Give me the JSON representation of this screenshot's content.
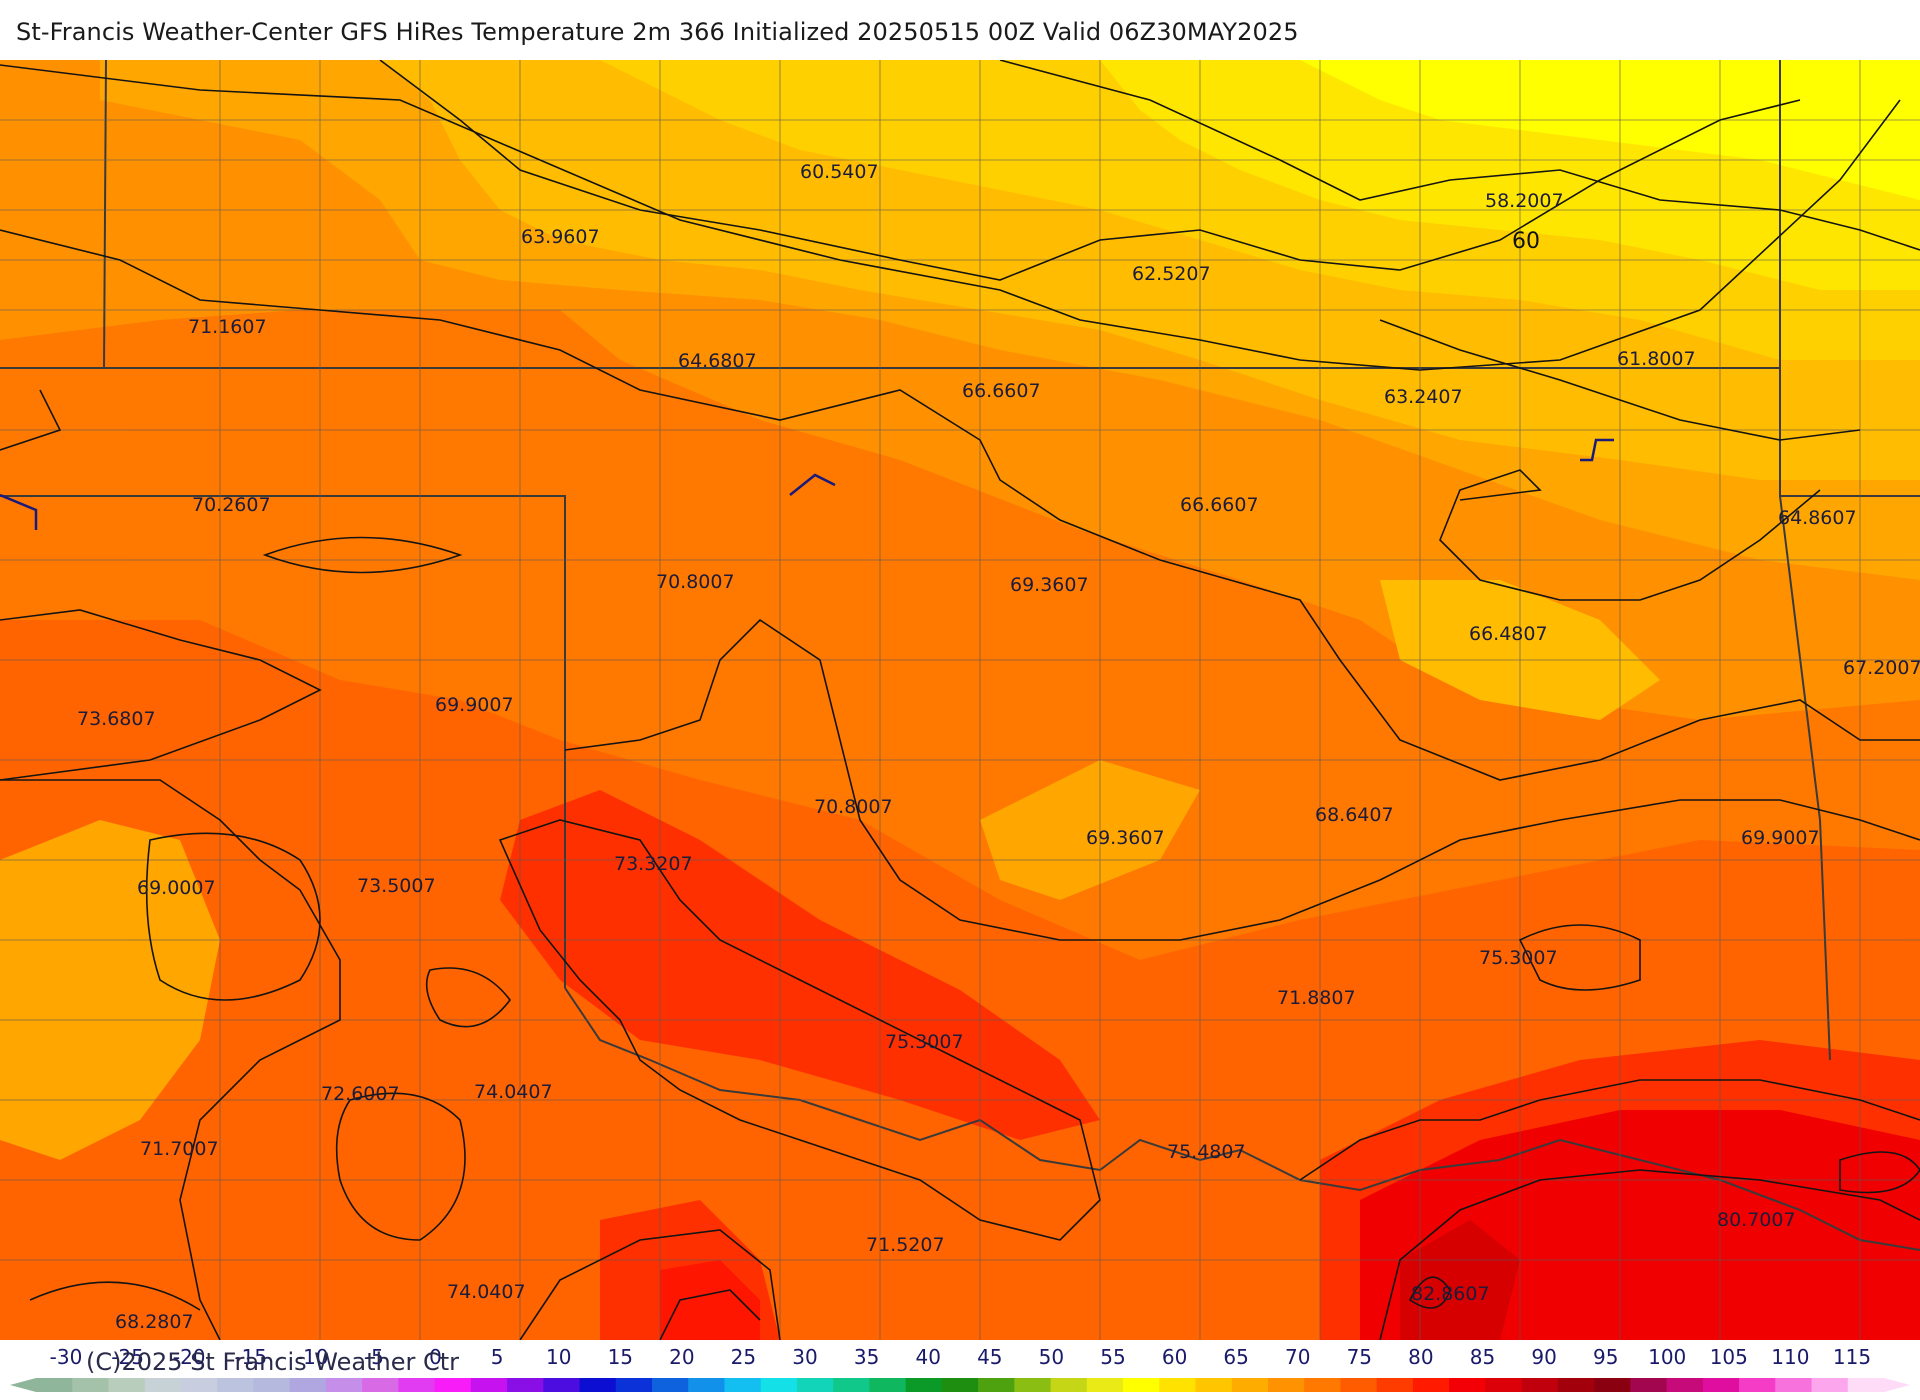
{
  "title": "St-Francis Weather-Center GFS HiRes Temperature 2m  366 Initialized 20250515 00Z Valid 06Z30MAY2025",
  "contour_special_label": "60",
  "value_labels": [
    {
      "text": "60.5407"
    },
    {
      "text": "58.2007"
    },
    {
      "text": "63.9607"
    },
    {
      "text": "62.5207"
    },
    {
      "text": "71.1607"
    },
    {
      "text": "64.6807"
    },
    {
      "text": "66.6607"
    },
    {
      "text": "63.2407"
    },
    {
      "text": "61.8007"
    },
    {
      "text": "70.2607"
    },
    {
      "text": "66.6607"
    },
    {
      "text": "64.8607"
    },
    {
      "text": "70.8007"
    },
    {
      "text": "69.3607"
    },
    {
      "text": "66.4807"
    },
    {
      "text": "67.2007"
    },
    {
      "text": "73.6807"
    },
    {
      "text": "69.9007"
    },
    {
      "text": "70.8007"
    },
    {
      "text": "69.3607"
    },
    {
      "text": "68.6407"
    },
    {
      "text": "69.9007"
    },
    {
      "text": "69.0007"
    },
    {
      "text": "73.5007"
    },
    {
      "text": "73.3207"
    },
    {
      "text": "75.3007"
    },
    {
      "text": "71.8807"
    },
    {
      "text": "75.3007"
    },
    {
      "text": "72.6007"
    },
    {
      "text": "74.0407"
    },
    {
      "text": "71.7007"
    },
    {
      "text": "75.4807"
    },
    {
      "text": "80.7007"
    },
    {
      "text": "71.5207"
    },
    {
      "text": "74.0407"
    },
    {
      "text": "68.2807"
    },
    {
      "text": "82.8607"
    }
  ],
  "colorbar": {
    "tick_labels": [
      "-30",
      "-25",
      "-20",
      "-15",
      "-10",
      "-5",
      "0",
      "5",
      "10",
      "15",
      "20",
      "25",
      "30",
      "35",
      "40",
      "45",
      "50",
      "55",
      "60",
      "65",
      "70",
      "75",
      "80",
      "85",
      "90",
      "95",
      "100",
      "105",
      "110",
      "115"
    ],
    "colors": [
      "#8fb59a",
      "#a4c2aa",
      "#b8cdbb",
      "#c6d2d6",
      "#c9cde0",
      "#bcc3df",
      "#b4b9dd",
      "#b0a6e0",
      "#c58ee8",
      "#d86ae6",
      "#e23cf2",
      "#f81cf8",
      "#c712f0",
      "#8a0fe6",
      "#4c0ee0",
      "#0c0fd2",
      "#0b32d8",
      "#0f62dd",
      "#1291ea",
      "#13bff0",
      "#14e0e7",
      "#12d4b8",
      "#10c88a",
      "#0fb85f",
      "#0b9a28",
      "#1e8e10",
      "#4fa20f",
      "#8bbe12",
      "#c5d616",
      "#eaea16",
      "#ffff00",
      "#ffe200",
      "#ffc600",
      "#ffac00",
      "#ff9200",
      "#ff7800",
      "#ff5c00",
      "#ff3c00",
      "#ff1a00",
      "#f20006",
      "#dc0008",
      "#c0000c",
      "#a2000a",
      "#8a0010",
      "#a2064e",
      "#c60a7a",
      "#e00e9e",
      "#f43cc6",
      "#f872de",
      "#fca6ee",
      "#fedcf8"
    ],
    "copyright": "(C)2025 St Francis Weather Ctr"
  },
  "legend_colors": {
    "t55": "#ffff00",
    "t60": "#ffe600",
    "t62": "#ffd000",
    "t64": "#ffbc00",
    "t66": "#ffa600",
    "t68": "#ff9000",
    "t70": "#ff7800",
    "t72": "#ff6400",
    "t74": "#ff4e00",
    "t76": "#ff3000",
    "t78": "#ff1600",
    "t80": "#f00000",
    "t82": "#d60000"
  }
}
